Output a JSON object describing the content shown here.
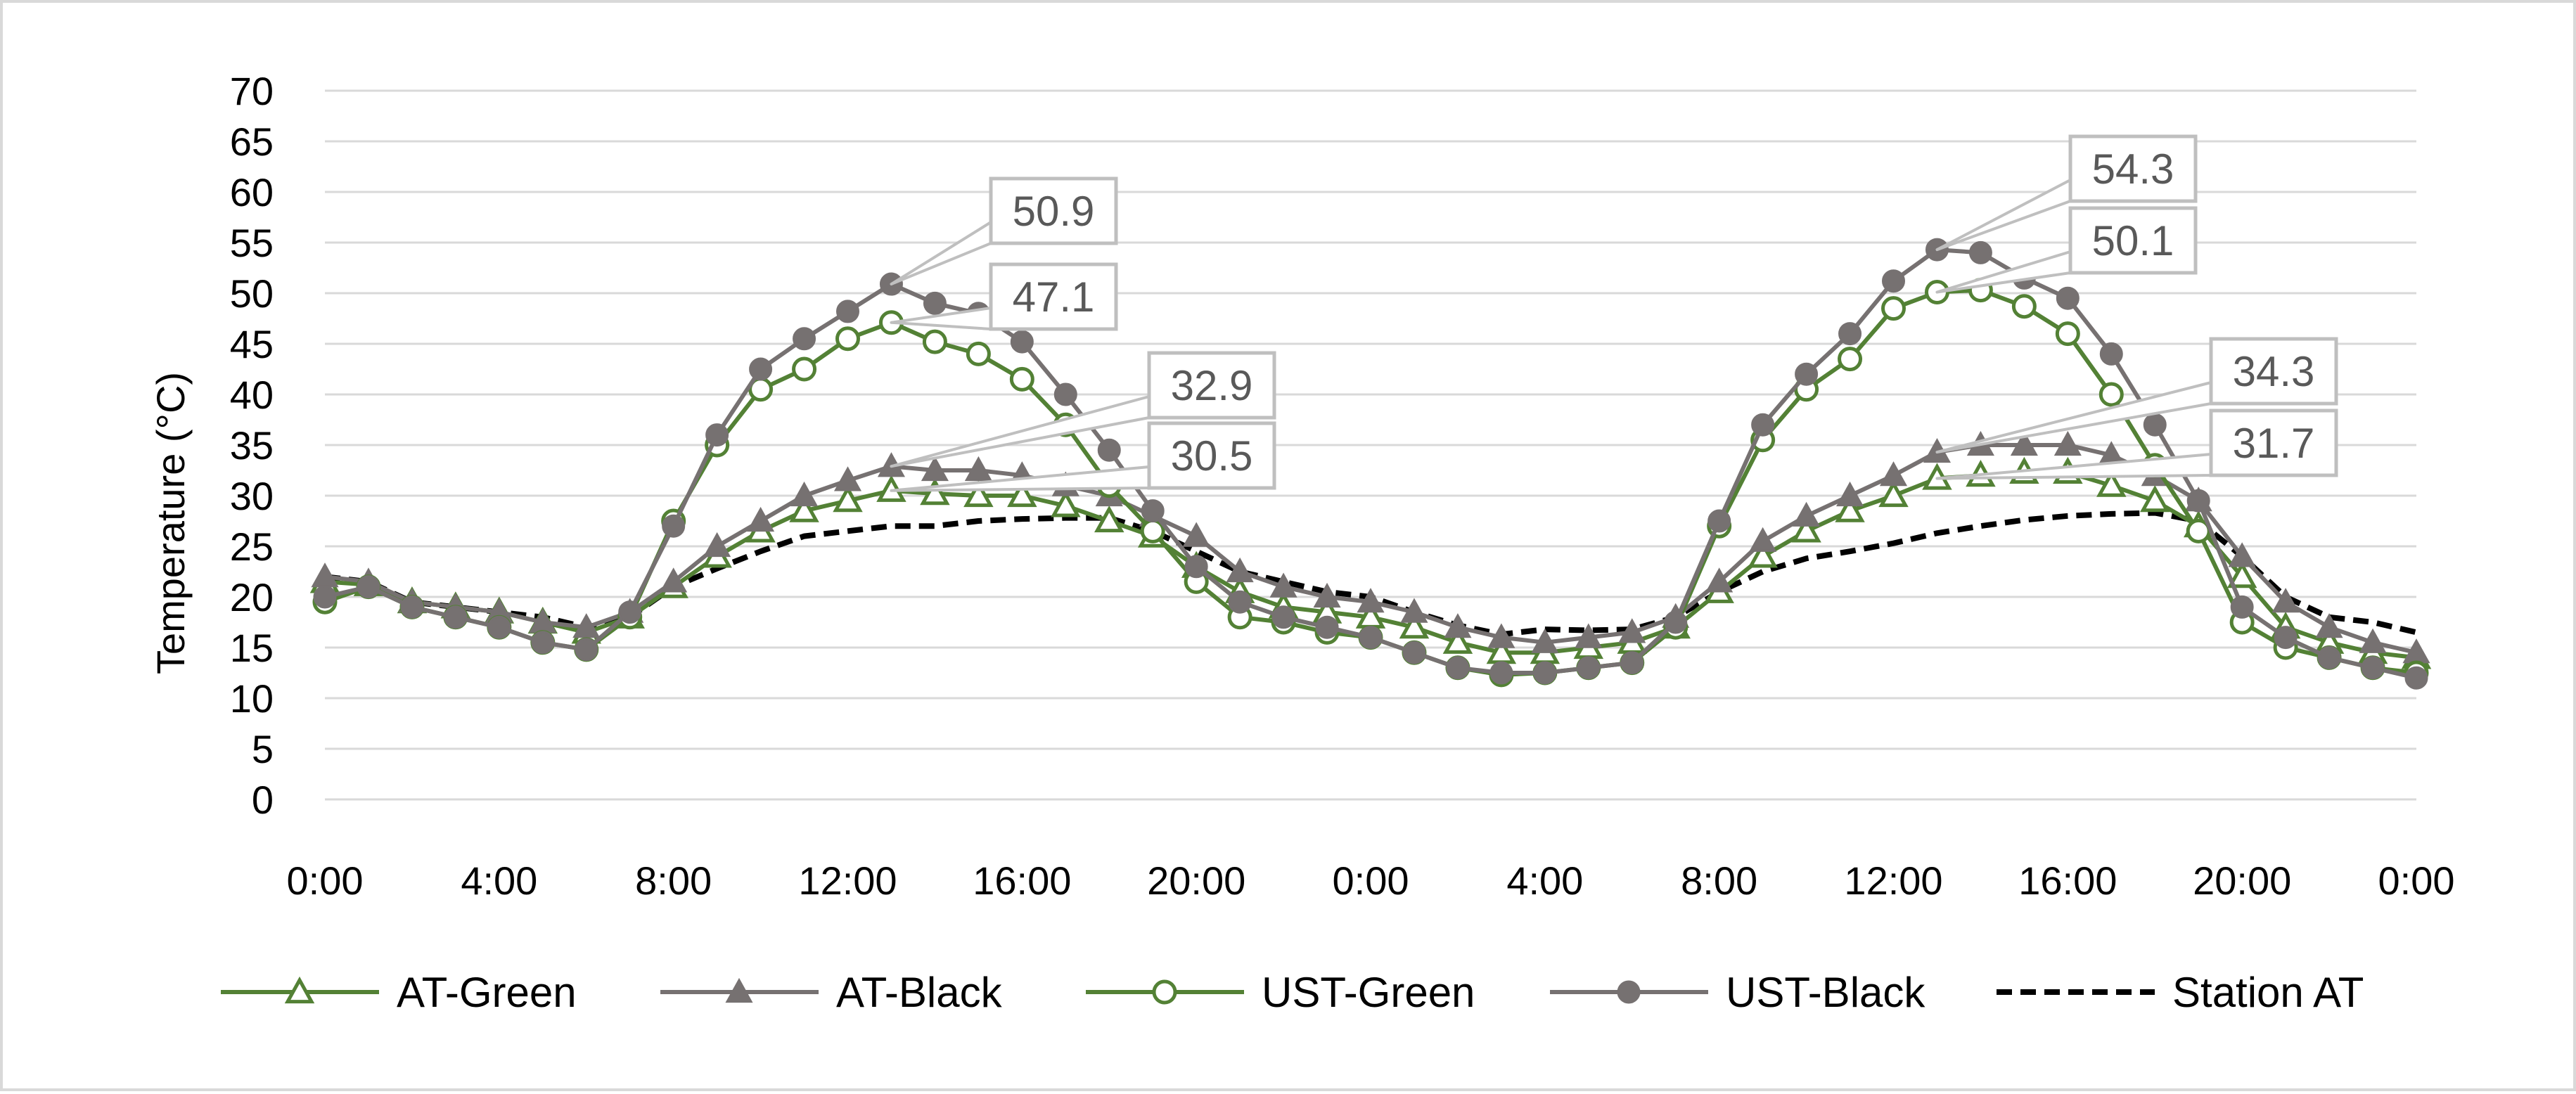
{
  "chart_data": {
    "type": "line",
    "ylabel": "Temperature (°C)",
    "ylim": [
      0,
      70
    ],
    "yticks": [
      "0",
      "5",
      "10",
      "15",
      "20",
      "25",
      "30",
      "35",
      "40",
      "45",
      "50",
      "55",
      "60",
      "65",
      "70"
    ],
    "xlim": [
      0,
      48
    ],
    "xticks": [
      "0:00",
      "4:00",
      "8:00",
      "12:00",
      "16:00",
      "20:00",
      "0:00",
      "4:00",
      "8:00",
      "12:00",
      "16:00",
      "20:00",
      "0:00"
    ],
    "xticks_hours": [
      0,
      4,
      8,
      12,
      16,
      20,
      24,
      28,
      32,
      36,
      40,
      44,
      48
    ],
    "grid": true,
    "legend_position": "bottom",
    "x_hours": [
      0,
      1,
      2,
      3,
      4,
      5,
      6,
      7,
      8,
      9,
      10,
      11,
      12,
      13,
      14,
      15,
      16,
      17,
      18,
      19,
      20,
      21,
      22,
      23,
      24,
      25,
      26,
      27,
      28,
      29,
      30,
      31,
      32,
      33,
      34,
      35,
      36,
      37,
      38,
      39,
      40,
      41,
      42,
      43,
      44,
      45,
      46,
      47,
      48
    ],
    "series": [
      {
        "name": "AT-Green",
        "color": "#538135",
        "marker": "open-triangle",
        "values": [
          21.5,
          21.2,
          19.5,
          19,
          18.5,
          17.5,
          16.5,
          18,
          21,
          24,
          26.5,
          28.5,
          29.5,
          30.5,
          30.2,
          30,
          30,
          29,
          27.5,
          26,
          23,
          20.5,
          19,
          18.5,
          18,
          17,
          15.5,
          14.5,
          14.5,
          15,
          15.5,
          17,
          20.5,
          24,
          26.5,
          28.5,
          30,
          31.7,
          32,
          32.3,
          32.3,
          31,
          29.5,
          27,
          22,
          17,
          15.5,
          14.5,
          14
        ]
      },
      {
        "name": "AT-Black",
        "color": "#767171",
        "marker": "filled-triangle",
        "values": [
          22,
          21.5,
          19.5,
          19,
          18.5,
          17.5,
          17,
          18.5,
          21.5,
          25,
          27.5,
          30,
          31.5,
          32.9,
          32.5,
          32.5,
          32,
          31,
          30,
          28,
          26,
          22.5,
          21,
          20,
          19.5,
          18.5,
          17,
          16,
          15.5,
          16,
          16.5,
          18,
          21.5,
          25.5,
          28,
          30,
          32,
          34.3,
          35,
          35,
          35,
          34,
          32,
          29.5,
          24,
          19.5,
          17,
          15.5,
          14.5
        ]
      },
      {
        "name": "UST-Green",
        "color": "#538135",
        "marker": "open-circle",
        "values": [
          19.5,
          21,
          19,
          18,
          17,
          15.5,
          14.8,
          18,
          27.5,
          35,
          40.5,
          42.5,
          45.5,
          47.1,
          45.2,
          44,
          41.5,
          37,
          31,
          26.5,
          21.5,
          18,
          17.5,
          16.5,
          16,
          14.5,
          13,
          12.3,
          12.5,
          13,
          13.5,
          17,
          27,
          35.5,
          40.5,
          43.5,
          48.5,
          50.1,
          50.3,
          48.7,
          46,
          40,
          33,
          26.5,
          17.5,
          15,
          14,
          13,
          12.5
        ]
      },
      {
        "name": "UST-Black",
        "color": "#767171",
        "marker": "filled-circle",
        "values": [
          20,
          21,
          19,
          18,
          17,
          15.5,
          14.8,
          18.5,
          27,
          36,
          42.5,
          45.5,
          48.2,
          50.9,
          49,
          48,
          45.2,
          40,
          34.5,
          28.5,
          23,
          19.5,
          18,
          17,
          16,
          14.5,
          13,
          12.5,
          12.5,
          13,
          13.5,
          17.5,
          27.5,
          37,
          42,
          46,
          51.2,
          54.3,
          54,
          51.5,
          49.5,
          44,
          37,
          29.5,
          19,
          16,
          14,
          13,
          12
        ]
      },
      {
        "name": "Station AT",
        "color": "#000000",
        "marker": "dashed",
        "values": [
          22,
          21.5,
          19.5,
          19,
          18.5,
          18,
          17,
          18,
          21,
          22.8,
          24.5,
          26,
          26.5,
          27,
          27,
          27.5,
          27.7,
          27.8,
          27.8,
          26.5,
          24.5,
          22.5,
          21.5,
          20.5,
          20,
          18.5,
          17.2,
          16.3,
          16.8,
          16.7,
          16.8,
          18,
          20.5,
          22.5,
          23.8,
          24.5,
          25.3,
          26.3,
          27,
          27.6,
          28,
          28.2,
          28.3,
          27.5,
          24,
          20,
          18,
          17.5,
          16.5
        ]
      }
    ],
    "annotations": [
      {
        "label": "50.9",
        "series": "UST-Black",
        "x_hour": 13,
        "value": 50.9
      },
      {
        "label": "47.1",
        "series": "UST-Green",
        "x_hour": 13,
        "value": 47.1
      },
      {
        "label": "32.9",
        "series": "AT-Black",
        "x_hour": 13,
        "value": 32.9
      },
      {
        "label": "30.5",
        "series": "AT-Green",
        "x_hour": 13,
        "value": 30.5
      },
      {
        "label": "54.3",
        "series": "UST-Black",
        "x_hour": 37,
        "value": 54.3
      },
      {
        "label": "50.1",
        "series": "UST-Green",
        "x_hour": 37,
        "value": 50.1
      },
      {
        "label": "34.3",
        "series": "AT-Black",
        "x_hour": 37,
        "value": 34.3
      },
      {
        "label": "31.7",
        "series": "AT-Green",
        "x_hour": 37,
        "value": 31.7
      }
    ]
  },
  "style": {
    "gridline_color": "#d9d9d9",
    "callout_border_color": "#bfbfbf",
    "callout_text_color": "#595959"
  }
}
